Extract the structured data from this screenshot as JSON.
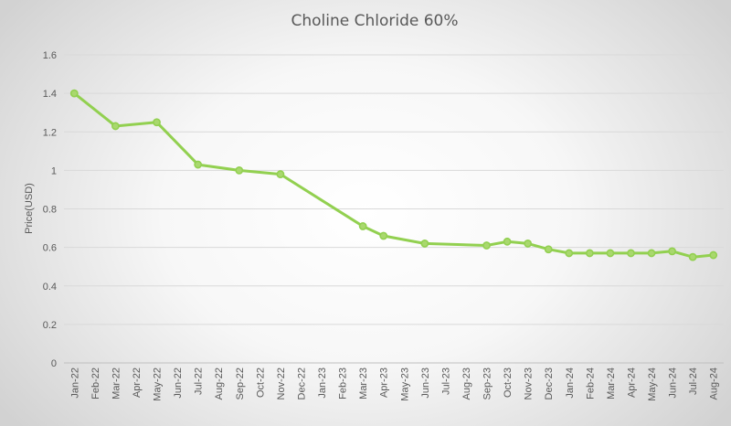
{
  "chart_data": {
    "type": "line",
    "title": "Choline Chloride 60%",
    "xlabel": "",
    "ylabel": "Price(USD)",
    "ylim": [
      0,
      1.6
    ],
    "yticks": [
      "0",
      "0.2",
      "0.4",
      "0.6",
      "0.8",
      "1",
      "1.2",
      "1.4",
      "1.6"
    ],
    "grid": true,
    "legend": "none",
    "categories": [
      "Jan-22",
      "Feb-22",
      "Mar-22",
      "Apr-22",
      "May-22",
      "Jun-22",
      "Jul-22",
      "Aug-22",
      "Sep-22",
      "Oct-22",
      "Nov-22",
      "Dec-22",
      "Jan-23",
      "Feb-23",
      "Mar-23",
      "Apr-23",
      "May-23",
      "Jun-23",
      "Jul-23",
      "Aug-23",
      "Sep-23",
      "Oct-23",
      "Nov-23",
      "Dec-23",
      "Jan-24",
      "Feb-24",
      "Mar-24",
      "Apr-24",
      "May-24",
      "Jun-24",
      "Jul-24",
      "Aug-24"
    ],
    "points": [
      {
        "x": "Jan-22",
        "y": 1.4
      },
      {
        "x": "Mar-22",
        "y": 1.23
      },
      {
        "x": "May-22",
        "y": 1.25
      },
      {
        "x": "Jul-22",
        "y": 1.03
      },
      {
        "x": "Sep-22",
        "y": 1.0
      },
      {
        "x": "Nov-22",
        "y": 0.98
      },
      {
        "x": "Mar-23",
        "y": 0.71
      },
      {
        "x": "Apr-23",
        "y": 0.66
      },
      {
        "x": "Jun-23",
        "y": 0.62
      },
      {
        "x": "Sep-23",
        "y": 0.61
      },
      {
        "x": "Oct-23",
        "y": 0.63
      },
      {
        "x": "Nov-23",
        "y": 0.62
      },
      {
        "x": "Dec-23",
        "y": 0.59
      },
      {
        "x": "Jan-24",
        "y": 0.57
      },
      {
        "x": "Feb-24",
        "y": 0.57
      },
      {
        "x": "Mar-24",
        "y": 0.57
      },
      {
        "x": "Apr-24",
        "y": 0.57
      },
      {
        "x": "May-24",
        "y": 0.57
      },
      {
        "x": "Jun-24",
        "y": 0.58
      },
      {
        "x": "Jul-24",
        "y": 0.55
      },
      {
        "x": "Aug-24",
        "y": 0.56
      }
    ],
    "colors": {
      "line": "#92d050",
      "marker_fill": "#a9d86e",
      "text": "#595959",
      "grid": "#d9d9d9"
    }
  }
}
